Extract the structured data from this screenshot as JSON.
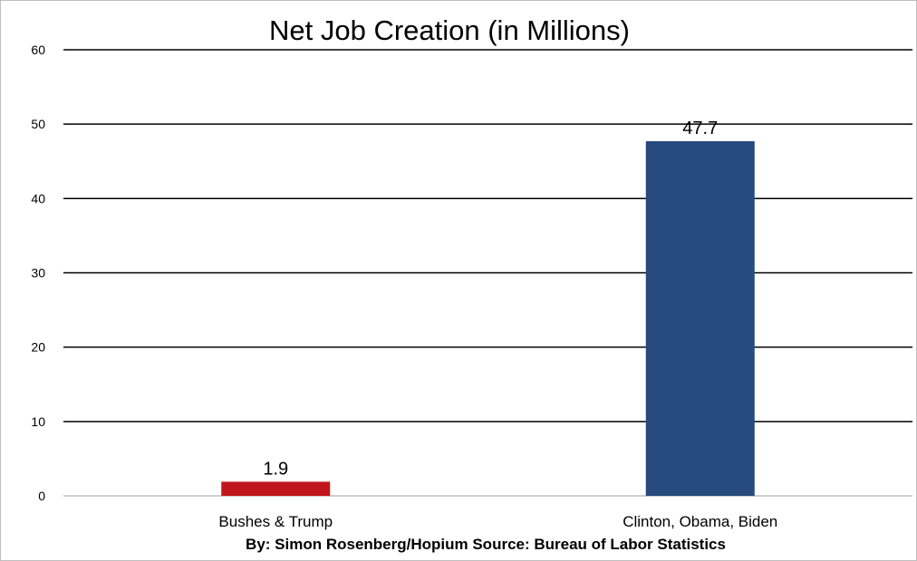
{
  "chart_data": {
    "type": "bar",
    "title": "Net Job Creation (in Millions)",
    "categories": [
      "Bushes & Trump",
      "Clinton, Obama, Biden"
    ],
    "values": [
      1.9,
      47.7
    ],
    "data_labels": [
      "1.9",
      "47.7"
    ],
    "colors": [
      "#c0171c",
      "#264a7d"
    ],
    "xlabel": "",
    "ylabel": "",
    "ylim": [
      0,
      60
    ],
    "yticks": [
      0,
      10,
      20,
      30,
      40,
      50,
      60
    ],
    "grid": true,
    "legend": "none"
  },
  "caption": "By: Simon Rosenberg/Hopium Source: Bureau of Labor Statistics"
}
